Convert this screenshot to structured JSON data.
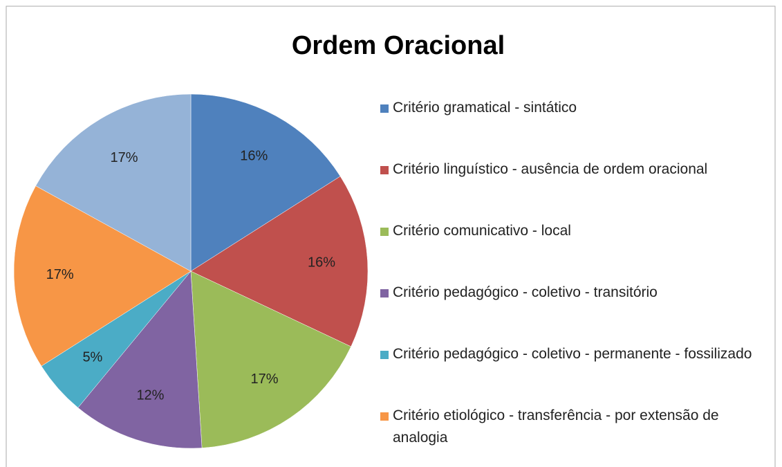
{
  "chart_data": {
    "type": "pie",
    "title": "Ordem Oracional",
    "categories": [
      "Critério gramatical - sintático",
      "Critério linguístico - ausência de ordem oracional",
      "Critério comunicativo - local",
      "Critério pedagógico - coletivo - transitório",
      "Critério pedagógico - coletivo - permanente - fossilizado",
      "Critério etiológico - transferência - por extensão de analogia",
      null
    ],
    "values": [
      16,
      16,
      17,
      12,
      5,
      17,
      17
    ],
    "value_labels": [
      "16%",
      "16%",
      "17%",
      "12%",
      "5%",
      "17%",
      "17%"
    ],
    "colors": [
      "#4f81bd",
      "#c0504d",
      "#9bbb59",
      "#8064a2",
      "#4bacc6",
      "#f79646",
      "#95b3d7"
    ],
    "legend": "right"
  }
}
